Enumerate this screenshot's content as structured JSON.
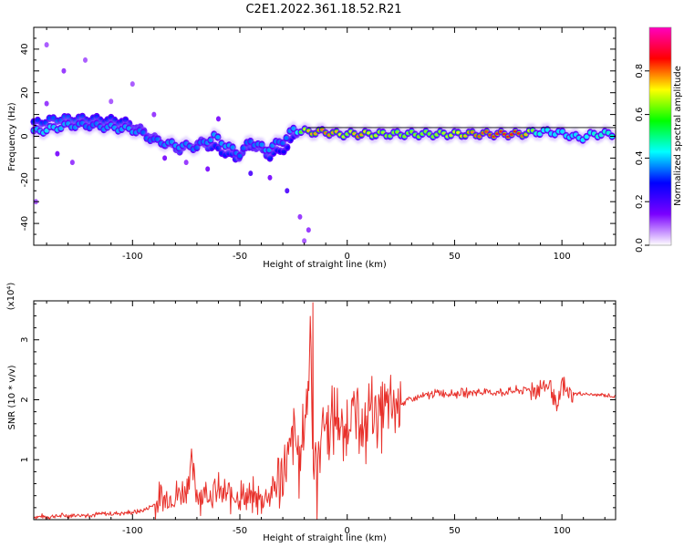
{
  "title": "C2E1.2022.361.18.52.R21",
  "colors": {
    "snr_line": "#e8302a",
    "axis": "#000000",
    "spectrogram_background": "#ffffff"
  },
  "chart_data": [
    {
      "type": "heatmap",
      "title": "C2E1.2022.361.18.52.R21",
      "xlabel": "Height of straight line (km)",
      "ylabel": "Frequency (Hz)",
      "xlim": [
        -146,
        125
      ],
      "ylim": [
        -50,
        50
      ],
      "x_ticks": [
        -100,
        -50,
        0,
        50,
        100
      ],
      "y_ticks": [
        -40,
        -20,
        0,
        20,
        40
      ],
      "colorbar": {
        "label": "Normalized spectral amplitude",
        "range": [
          0.0,
          1.0
        ],
        "ticks": [
          "0.0",
          "0.2",
          "0.4",
          "0.6",
          "0.8"
        ],
        "colormap": [
          "#ffffff",
          "#7a00ff",
          "#0000ff",
          "#00ffff",
          "#00ff00",
          "#ffff00",
          "#ff0000",
          "#ff00c0"
        ]
      },
      "ridge": [
        {
          "x": -146,
          "y": 2,
          "amp": 0.5
        },
        {
          "x": -140,
          "y": 3,
          "amp": 0.55
        },
        {
          "x": -130,
          "y": 5,
          "amp": 0.5
        },
        {
          "x": -120,
          "y": 5,
          "amp": 0.45
        },
        {
          "x": -110,
          "y": 4,
          "amp": 0.5
        },
        {
          "x": -100,
          "y": 3,
          "amp": 0.5
        },
        {
          "x": -95,
          "y": 1,
          "amp": 0.45
        },
        {
          "x": -90,
          "y": -2,
          "amp": 0.45
        },
        {
          "x": -80,
          "y": -4,
          "amp": 0.5
        },
        {
          "x": -70,
          "y": -5,
          "amp": 0.45
        },
        {
          "x": -62,
          "y": 0,
          "amp": 0.5
        },
        {
          "x": -55,
          "y": -5,
          "amp": 0.5
        },
        {
          "x": -50,
          "y": -8,
          "amp": 0.45
        },
        {
          "x": -45,
          "y": -2,
          "amp": 0.45
        },
        {
          "x": -38,
          "y": -6,
          "amp": 0.5
        },
        {
          "x": -30,
          "y": -2,
          "amp": 0.45
        },
        {
          "x": -25,
          "y": 3,
          "amp": 0.5
        },
        {
          "x": -18,
          "y": 2,
          "amp": 0.75
        },
        {
          "x": -10,
          "y": 2,
          "amp": 0.8
        },
        {
          "x": -5,
          "y": 1,
          "amp": 0.75
        },
        {
          "x": 0,
          "y": 1,
          "amp": 0.65
        },
        {
          "x": 5,
          "y": 1,
          "amp": 0.8
        },
        {
          "x": 10,
          "y": 1,
          "amp": 0.7
        },
        {
          "x": 20,
          "y": 1,
          "amp": 0.65
        },
        {
          "x": 30,
          "y": 1,
          "amp": 0.65
        },
        {
          "x": 40,
          "y": 1,
          "amp": 0.65
        },
        {
          "x": 50,
          "y": 1,
          "amp": 0.7
        },
        {
          "x": 60,
          "y": 1,
          "amp": 0.8
        },
        {
          "x": 70,
          "y": 1,
          "amp": 0.85
        },
        {
          "x": 80,
          "y": 1,
          "amp": 0.85
        },
        {
          "x": 88,
          "y": 2,
          "amp": 0.6
        },
        {
          "x": 95,
          "y": 2,
          "amp": 0.55
        },
        {
          "x": 102,
          "y": 1,
          "amp": 0.55
        },
        {
          "x": 108,
          "y": -1,
          "amp": 0.55
        },
        {
          "x": 115,
          "y": 1,
          "amp": 0.6
        },
        {
          "x": 125,
          "y": 1,
          "amp": 0.6
        }
      ],
      "secondary_ridge": [
        {
          "x": -146,
          "y": 6,
          "amp": 0.4
        },
        {
          "x": -135,
          "y": 8,
          "amp": 0.45
        },
        {
          "x": -120,
          "y": 8,
          "amp": 0.4
        },
        {
          "x": -105,
          "y": 7,
          "amp": 0.4
        },
        {
          "x": -98,
          "y": 4,
          "amp": 0.35
        },
        {
          "x": -88,
          "y": -2,
          "amp": 0.35
        },
        {
          "x": -78,
          "y": -6,
          "amp": 0.4
        },
        {
          "x": -68,
          "y": -3,
          "amp": 0.4
        },
        {
          "x": -60,
          "y": -6,
          "amp": 0.4
        },
        {
          "x": -52,
          "y": -10,
          "amp": 0.4
        },
        {
          "x": -44,
          "y": -4,
          "amp": 0.35
        },
        {
          "x": -36,
          "y": -9,
          "amp": 0.4
        },
        {
          "x": -28,
          "y": -5,
          "amp": 0.35
        },
        {
          "x": -22,
          "y": 4,
          "amp": 0.4
        }
      ],
      "scatter_points": [
        {
          "x": -140,
          "y": 42,
          "amp": 0.1
        },
        {
          "x": -132,
          "y": 30,
          "amp": 0.12
        },
        {
          "x": -122,
          "y": 35,
          "amp": 0.1
        },
        {
          "x": -140,
          "y": 15,
          "amp": 0.12
        },
        {
          "x": -135,
          "y": -8,
          "amp": 0.15
        },
        {
          "x": -128,
          "y": -12,
          "amp": 0.12
        },
        {
          "x": -110,
          "y": 16,
          "amp": 0.1
        },
        {
          "x": -100,
          "y": 24,
          "amp": 0.1
        },
        {
          "x": -85,
          "y": -10,
          "amp": 0.15
        },
        {
          "x": -75,
          "y": -12,
          "amp": 0.12
        },
        {
          "x": -65,
          "y": -15,
          "amp": 0.15
        },
        {
          "x": -45,
          "y": -17,
          "amp": 0.2
        },
        {
          "x": -36,
          "y": -19,
          "amp": 0.15
        },
        {
          "x": -28,
          "y": -25,
          "amp": 0.2
        },
        {
          "x": -22,
          "y": -37,
          "amp": 0.12
        },
        {
          "x": -18,
          "y": -43,
          "amp": 0.12
        },
        {
          "x": -20,
          "y": -48,
          "amp": 0.1
        },
        {
          "x": -145,
          "y": -30,
          "amp": 0.1
        },
        {
          "x": -90,
          "y": 10,
          "amp": 0.12
        },
        {
          "x": -60,
          "y": 8,
          "amp": 0.15
        }
      ]
    },
    {
      "type": "line",
      "xlabel": "Height of straight line (km)",
      "ylabel": "SNR (10 * v/v)",
      "y_multiplier": "(x10⁴)",
      "xlim": [
        -146,
        125
      ],
      "ylim": [
        0,
        3.65
      ],
      "x_ticks": [
        -100,
        -50,
        0,
        50,
        100
      ],
      "y_ticks": [
        1,
        2,
        3
      ],
      "series": [
        {
          "x": [
            -146,
            -140,
            -130,
            -120,
            -110,
            -100,
            -95,
            -90,
            -85,
            -80,
            -75,
            -73,
            -70,
            -65,
            -60,
            -55,
            -50,
            -45,
            -40,
            -35,
            -30,
            -27,
            -25,
            -22,
            -20,
            -18,
            -17,
            -16,
            -15,
            -14,
            -12,
            -10,
            -8,
            -6,
            -4,
            -2,
            0,
            2,
            4,
            6,
            8,
            10,
            15,
            20,
            25,
            30,
            35,
            40,
            45,
            50,
            60,
            70,
            80,
            90,
            95,
            98,
            100,
            102,
            105,
            110,
            115,
            120,
            125
          ],
          "y": [
            0.05,
            0.05,
            0.07,
            0.08,
            0.1,
            0.12,
            0.15,
            0.25,
            0.35,
            0.4,
            0.5,
            0.95,
            0.45,
            0.45,
            0.45,
            0.4,
            0.4,
            0.35,
            0.35,
            0.45,
            0.8,
            1.0,
            1.5,
            0.9,
            1.6,
            2.2,
            3.6,
            0.8,
            1.2,
            0.6,
            1.7,
            1.6,
            1.5,
            1.7,
            1.8,
            1.2,
            1.7,
            1.9,
            1.6,
            1.85,
            1.2,
            1.9,
            1.75,
            1.85,
            1.95,
            2.0,
            2.05,
            2.1,
            2.12,
            2.1,
            2.13,
            2.12,
            2.15,
            2.2,
            2.25,
            1.75,
            2.3,
            2.1,
            2.1,
            2.1,
            2.08,
            2.08,
            2.05
          ]
        }
      ]
    }
  ]
}
